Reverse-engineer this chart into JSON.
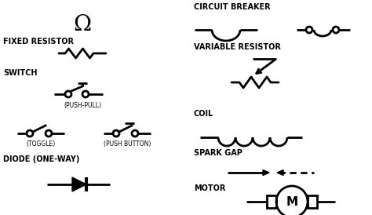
{
  "bg_color": "#ffffff",
  "text_color": "#000000",
  "line_color": "#000000",
  "labels": {
    "fixed_resistor": "FIXED RESISTOR",
    "switch": "SWITCH",
    "push_pull": "(PUSH-PULL)",
    "toggle": "(TOGGLE)",
    "push_button": "(PUSH BUTTON)",
    "diode": "DIODE (ONE-WAY)",
    "circuit_breaker": "CIRCUIT BREAKER",
    "variable_resistor": "VARIABLE RESISTOR",
    "coil": "COIL",
    "spark_gap": "SPARK GAP",
    "motor": "MOTOR"
  },
  "font_size_label": 7.0,
  "font_size_small": 5.5,
  "lw": 2.0
}
